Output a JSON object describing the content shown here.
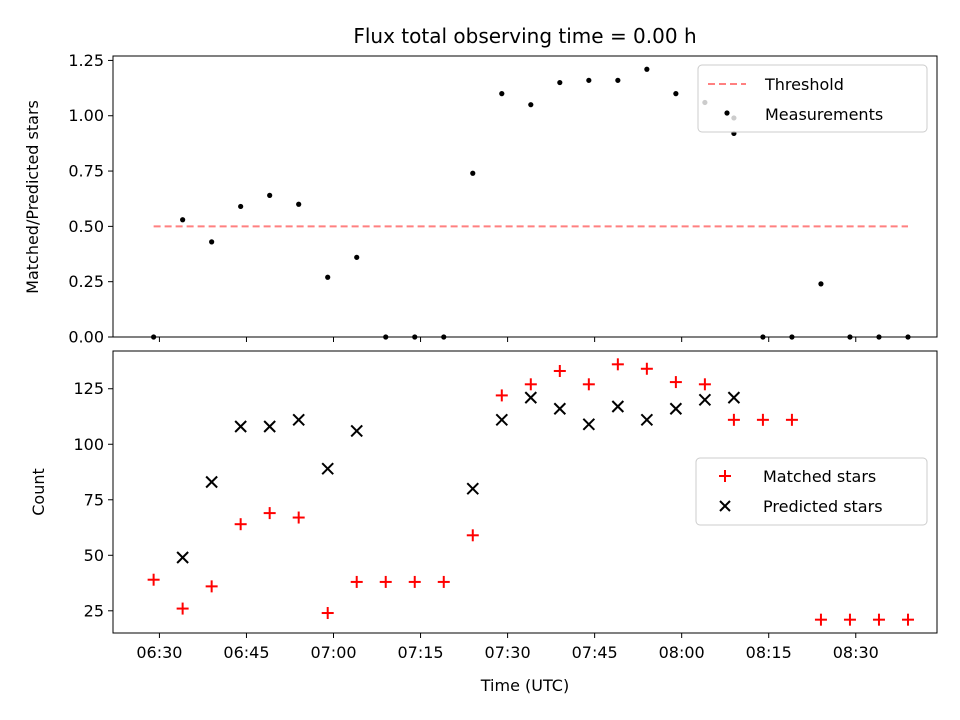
{
  "chart_data": [
    {
      "type": "scatter",
      "title": "Flux total observing time = 0.00 h",
      "xlabel": "",
      "ylabel": "Matched/Predicted stars",
      "ylim": [
        0,
        1.27
      ],
      "yticks": [
        "0.00",
        "0.25",
        "0.50",
        "0.75",
        "1.00",
        "1.25"
      ],
      "ytick_values": [
        0,
        0.25,
        0.5,
        0.75,
        1.0,
        1.25
      ],
      "legend_position": "top-right",
      "threshold": {
        "name": "Threshold",
        "value": 0.5,
        "x_start": "06:29",
        "x_end": "08:39",
        "color": "#ff8080"
      },
      "series": [
        {
          "name": "Measurements",
          "color": "#000000",
          "x": [
            "06:29",
            "06:34",
            "06:39",
            "06:44",
            "06:49",
            "06:54",
            "06:59",
            "07:04",
            "07:09",
            "07:14",
            "07:19",
            "07:24",
            "07:29",
            "07:34",
            "07:39",
            "07:44",
            "07:49",
            "07:54",
            "07:59",
            "08:04",
            "08:09",
            "08:14",
            "08:19",
            "08:24",
            "08:29",
            "08:34",
            "08:39"
          ],
          "y": [
            0.0,
            0.53,
            0.43,
            0.59,
            0.64,
            0.6,
            0.27,
            0.36,
            0.0,
            0.0,
            0.0,
            0.74,
            1.1,
            1.05,
            1.15,
            1.16,
            1.16,
            1.21,
            1.1,
            1.06,
            0.92,
            0.0,
            0.0,
            0.24,
            0.0,
            0.0,
            0.0
          ],
          "extra_points": [
            {
              "x": "08:09",
              "y": 0.99
            }
          ]
        }
      ]
    },
    {
      "type": "scatter",
      "title": "",
      "xlabel": "Time (UTC)",
      "ylabel": "Count",
      "ylim": [
        15,
        142
      ],
      "xlim": [
        "06:22",
        "08:44"
      ],
      "xticks": [
        "06:30",
        "06:45",
        "07:00",
        "07:15",
        "07:30",
        "07:45",
        "08:00",
        "08:15",
        "08:30"
      ],
      "yticks": [
        "25",
        "50",
        "75",
        "100",
        "125"
      ],
      "ytick_values": [
        25,
        50,
        75,
        100,
        125
      ],
      "legend_position": "center-right",
      "series": [
        {
          "name": "Matched stars",
          "marker": "+",
          "color": "#ff0000",
          "x": [
            "06:29",
            "06:34",
            "06:39",
            "06:44",
            "06:49",
            "06:54",
            "06:59",
            "07:04",
            "07:09",
            "07:14",
            "07:19",
            "07:24",
            "07:29",
            "07:34",
            "07:39",
            "07:44",
            "07:49",
            "07:54",
            "07:59",
            "08:04",
            "08:09",
            "08:14",
            "08:19",
            "08:24",
            "08:29",
            "08:34",
            "08:39"
          ],
          "y": [
            39,
            26,
            36,
            64,
            69,
            67,
            24,
            38,
            38,
            38,
            38,
            59,
            122,
            127,
            133,
            127,
            136,
            134,
            128,
            127,
            111,
            111,
            111,
            21,
            21,
            21,
            21
          ]
        },
        {
          "name": "Predicted stars",
          "marker": "x",
          "color": "#000000",
          "x": [
            "06:34",
            "06:39",
            "06:44",
            "06:49",
            "06:54",
            "06:59",
            "07:04",
            "07:24",
            "07:29",
            "07:34",
            "07:39",
            "07:44",
            "07:49",
            "07:54",
            "07:59",
            "08:04",
            "08:09"
          ],
          "y": [
            49,
            83,
            108,
            108,
            111,
            89,
            106,
            80,
            111,
            121,
            116,
            109,
            117,
            111,
            116,
            120,
            121
          ]
        }
      ]
    }
  ]
}
